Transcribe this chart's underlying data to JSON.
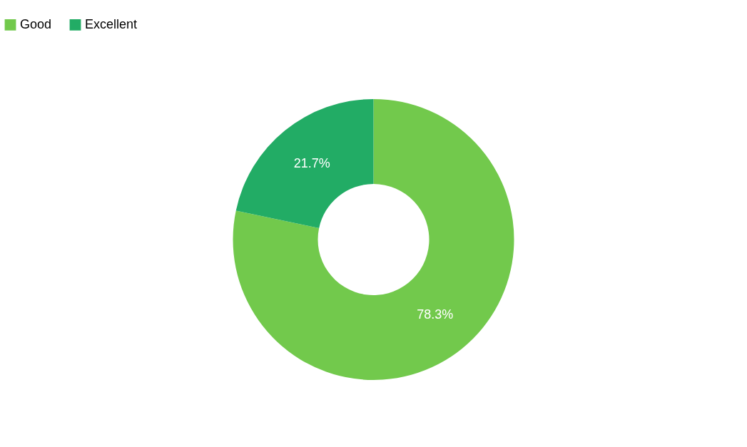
{
  "chart_data": {
    "type": "donut",
    "categories": [
      "Good",
      "Excellent"
    ],
    "values": [
      78.3,
      21.7
    ],
    "colors": [
      "#72c94c",
      "#22ac65"
    ],
    "value_labels": [
      "78.3%",
      "21.7%"
    ],
    "legend": "top"
  }
}
